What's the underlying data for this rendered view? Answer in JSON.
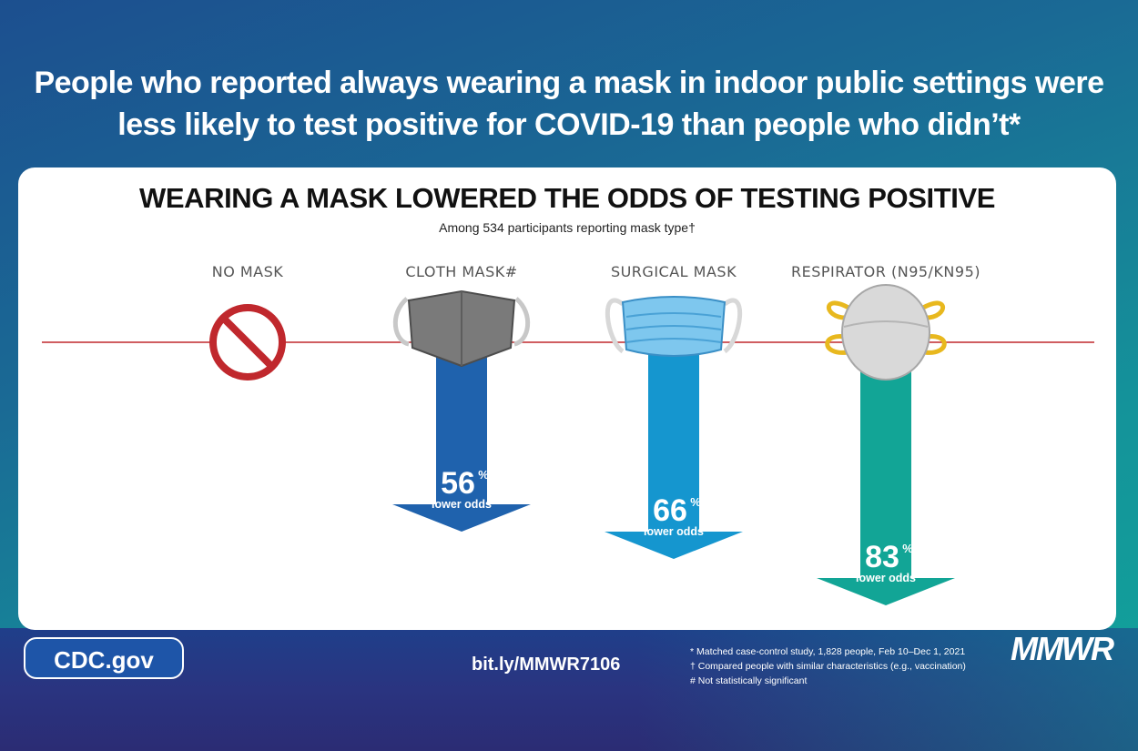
{
  "headline": {
    "line1": "People who reported always wearing a mask in indoor public settings were",
    "line2": "less likely to test positive for COVID-19 than people who didn’t*"
  },
  "chart_data": {
    "type": "bar",
    "title": "WEARING A MASK LOWERED THE ODDS OF TESTING POSITIVE",
    "subtitle": "Among 534 participants reporting mask type†",
    "categories": [
      "NO MASK",
      "CLOTH MASK#",
      "SURGICAL MASK",
      "RESPIRATOR (N95/KN95)"
    ],
    "values": [
      null,
      56,
      66,
      83
    ],
    "value_unit": "%",
    "value_caption": "lower odds",
    "icons": [
      "no-symbol-icon",
      "cloth-mask-icon",
      "surgical-mask-icon",
      "respirator-icon"
    ],
    "colors": {
      "cloth": "#1f62ad",
      "surgical": "#1596cf",
      "respirator": "#12a596",
      "baseline": "#c0282d",
      "no_mask": "#c0282d"
    }
  },
  "footer": {
    "cdc_badge": "CDC.gov",
    "link": "bit.ly/MMWR7106",
    "footnotes": [
      "* Matched case-control study, 1,828 people, Feb 10–Dec 1, 2021",
      "† Compared people with similar characteristics (e.g., vaccination)",
      "# Not statistically significant"
    ],
    "brand": "MMWR"
  }
}
